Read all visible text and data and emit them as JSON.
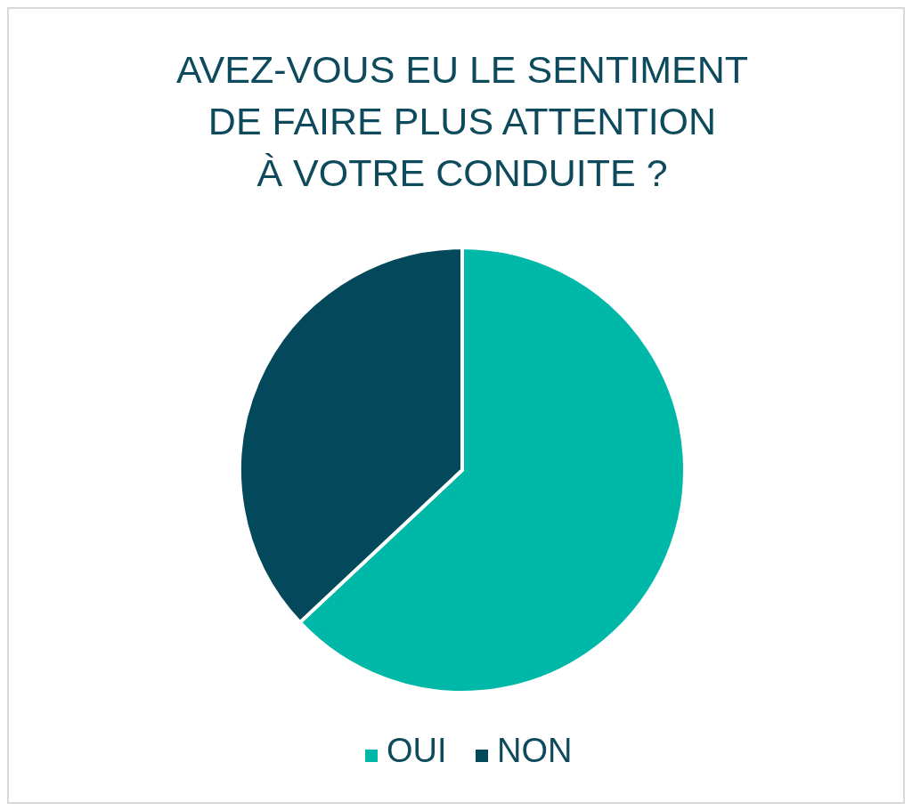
{
  "chart_data": {
    "type": "pie",
    "title": "AVEZ-VOUS EU LE SENTIMENT\nDE FAIRE PLUS ATTENTION\nÀ VOTRE CONDUITE ?",
    "categories": [
      "OUI",
      "NON"
    ],
    "values": [
      63,
      37
    ],
    "colors": [
      "#00b8a7",
      "#03495b"
    ],
    "legend": "bottom"
  }
}
